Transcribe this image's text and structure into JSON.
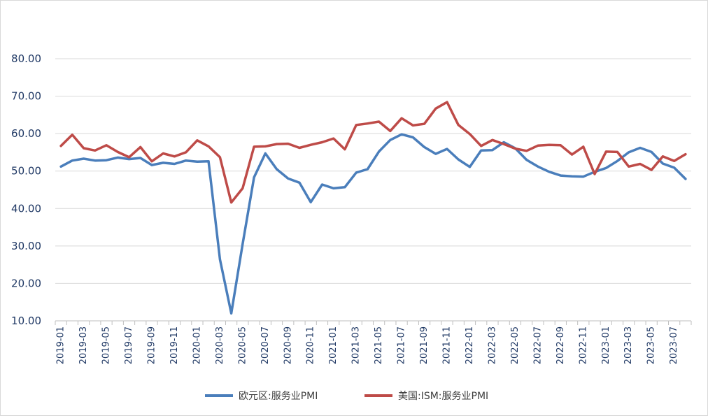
{
  "chart_data": {
    "type": "line",
    "title": "",
    "xlabel": "",
    "ylabel": "",
    "ylim": [
      10,
      80
    ],
    "yticks": [
      "10.00",
      "20.00",
      "30.00",
      "40.00",
      "50.00",
      "60.00",
      "70.00",
      "80.00"
    ],
    "grid": true,
    "legend_position": "bottom",
    "x": [
      "2019-01",
      "2019-02",
      "2019-03",
      "2019-04",
      "2019-05",
      "2019-06",
      "2019-07",
      "2019-08",
      "2019-09",
      "2019-10",
      "2019-11",
      "2019-12",
      "2020-01",
      "2020-02",
      "2020-03",
      "2020-04",
      "2020-05",
      "2020-06",
      "2020-07",
      "2020-08",
      "2020-09",
      "2020-10",
      "2020-11",
      "2020-12",
      "2021-01",
      "2021-02",
      "2021-03",
      "2021-04",
      "2021-05",
      "2021-06",
      "2021-07",
      "2021-08",
      "2021-09",
      "2021-10",
      "2021-11",
      "2021-12",
      "2022-01",
      "2022-02",
      "2022-03",
      "2022-04",
      "2022-05",
      "2022-06",
      "2022-07",
      "2022-08",
      "2022-09",
      "2022-10",
      "2022-11",
      "2022-12",
      "2023-01",
      "2023-02",
      "2023-03",
      "2023-04",
      "2023-05",
      "2023-06",
      "2023-07",
      "2023-08"
    ],
    "x_tick_labels": [
      "2019-01",
      "2019-03",
      "2019-05",
      "2019-07",
      "2019-09",
      "2019-11",
      "2020-01",
      "2020-03",
      "2020-05",
      "2020-07",
      "2020-09",
      "2020-11",
      "2021-01",
      "2021-03",
      "2021-05",
      "2021-07",
      "2021-09",
      "2021-11",
      "2022-01",
      "2022-03",
      "2022-05",
      "2022-07",
      "2022-09",
      "2022-11",
      "2023-01",
      "2023-03",
      "2023-05",
      "2023-07"
    ],
    "series": [
      {
        "name": "欧元区:服务业PMI",
        "color": "#4a7ebb",
        "values": [
          51.2,
          52.8,
          53.3,
          52.8,
          52.9,
          53.6,
          53.2,
          53.5,
          51.6,
          52.2,
          51.9,
          52.8,
          52.5,
          52.6,
          26.4,
          12.0,
          30.5,
          48.3,
          54.7,
          50.5,
          48.0,
          46.9,
          41.7,
          46.4,
          45.4,
          45.7,
          49.6,
          50.5,
          55.2,
          58.3,
          59.8,
          59.0,
          56.4,
          54.6,
          55.9,
          53.1,
          51.1,
          55.5,
          55.6,
          57.7,
          56.1,
          53.0,
          51.2,
          49.8,
          48.8,
          48.6,
          48.5,
          49.8,
          50.8,
          52.7,
          55.0,
          56.2,
          55.1,
          52.0,
          50.9,
          47.9
        ]
      },
      {
        "name": "美国:ISM:服务业PMI",
        "color": "#be4b48",
        "values": [
          56.7,
          59.7,
          56.1,
          55.5,
          56.9,
          55.1,
          53.7,
          56.4,
          52.6,
          54.7,
          53.9,
          55.0,
          58.2,
          56.6,
          53.7,
          41.6,
          45.4,
          56.5,
          56.6,
          57.2,
          57.3,
          56.2,
          57.0,
          57.7,
          58.7,
          55.8,
          62.3,
          62.7,
          63.2,
          60.7,
          64.1,
          62.2,
          62.6,
          66.7,
          68.4,
          62.3,
          59.9,
          56.7,
          58.3,
          57.2,
          56.0,
          55.4,
          56.8,
          57.0,
          56.9,
          54.4,
          56.5,
          49.2,
          55.2,
          55.1,
          51.2,
          51.9,
          50.3,
          53.9,
          52.7,
          54.5
        ]
      }
    ]
  }
}
